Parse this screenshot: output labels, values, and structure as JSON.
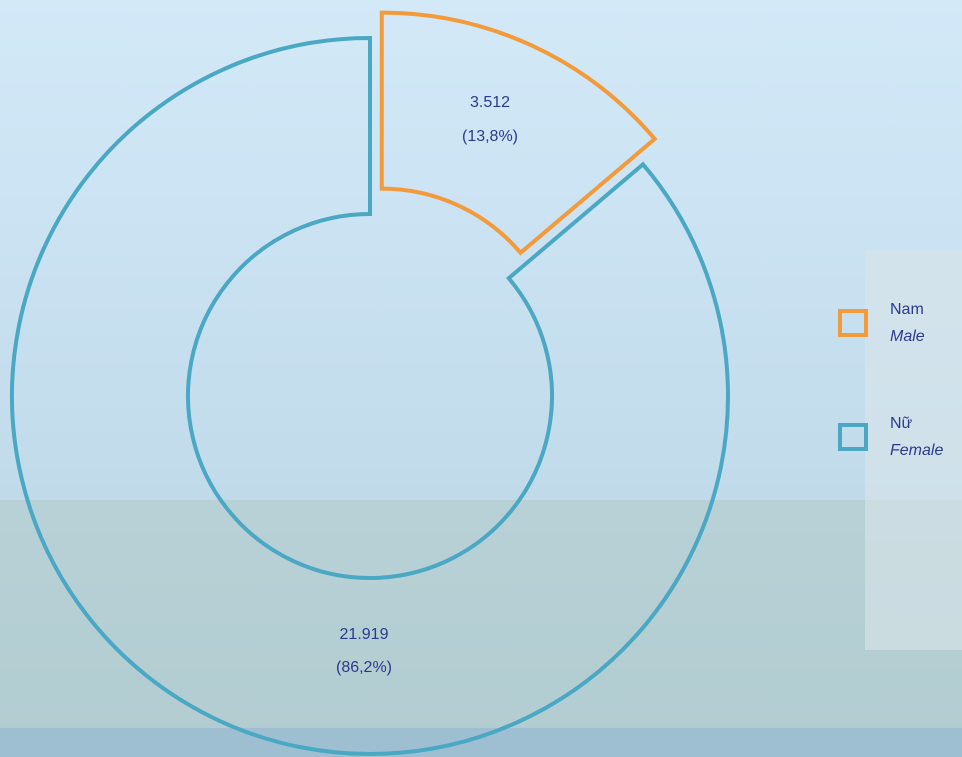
{
  "chart_data": {
    "type": "pie",
    "categories": [
      "Nam",
      "Nữ"
    ],
    "categories_en": [
      "Male",
      "Female"
    ],
    "values": [
      3512,
      21919
    ],
    "value_labels": [
      "3.512",
      "21.919"
    ],
    "percents": [
      13.8,
      86.2
    ],
    "percent_labels": [
      "(13,8%)",
      "(86,2%)"
    ],
    "colors": [
      "#f39a3a",
      "#4aa8c4"
    ],
    "donut": true,
    "exploded": [
      true,
      false
    ],
    "legend": "right"
  }
}
